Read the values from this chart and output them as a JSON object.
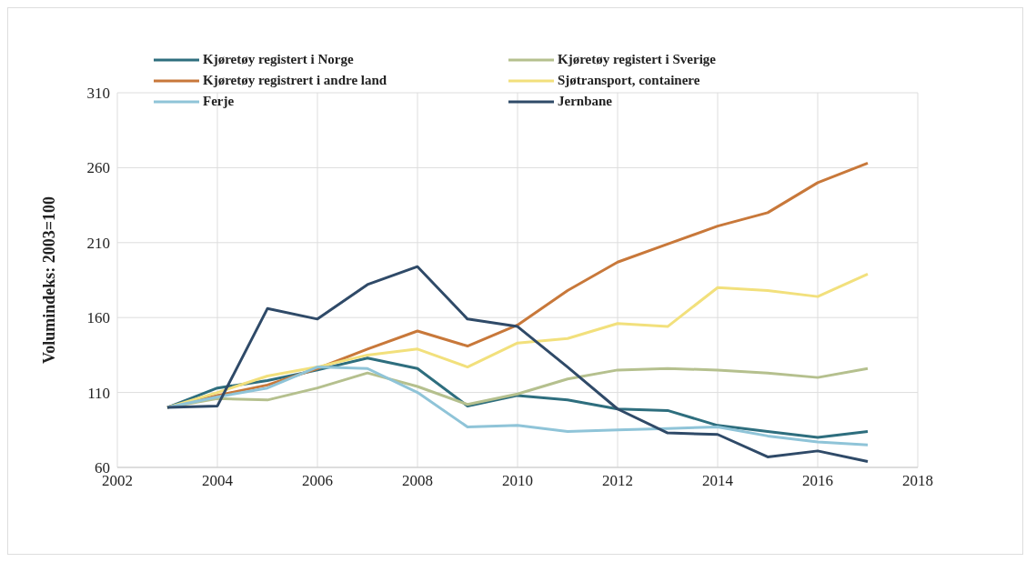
{
  "chart_data": {
    "type": "line",
    "ylabel": "Volumindeks: 2003=100",
    "x": [
      2003,
      2004,
      2005,
      2006,
      2007,
      2008,
      2009,
      2010,
      2011,
      2012,
      2013,
      2014,
      2015,
      2016,
      2017
    ],
    "xlim": [
      2002,
      2018
    ],
    "xticks": [
      2002,
      2004,
      2006,
      2008,
      2010,
      2012,
      2014,
      2016,
      2018
    ],
    "ylim": [
      60,
      310
    ],
    "yticks": [
      60,
      110,
      160,
      210,
      260,
      310
    ],
    "grid": true,
    "legend": "top",
    "marker": "none",
    "line_style": "solid",
    "series": [
      {
        "name": "Kjøretøy registert i Norge",
        "color": "#2e6e7e",
        "values": [
          100,
          113,
          118,
          125,
          133,
          126,
          101,
          108,
          105,
          99,
          98,
          88,
          84,
          80,
          84
        ]
      },
      {
        "name": "Kjøretøy registert i Sverige",
        "color": "#b5c08e",
        "values": [
          100,
          106,
          105,
          113,
          123,
          114,
          102,
          109,
          119,
          125,
          126,
          125,
          123,
          120,
          126
        ]
      },
      {
        "name": "Kjøretøy registrert i andre land",
        "color": "#c8783a",
        "values": [
          100,
          108,
          115,
          126,
          139,
          151,
          141,
          155,
          178,
          197,
          209,
          221,
          230,
          250,
          263
        ]
      },
      {
        "name": "Sjøtransport, containere",
        "color": "#f2e07c",
        "values": [
          100,
          110,
          121,
          127,
          135,
          139,
          127,
          143,
          146,
          156,
          154,
          180,
          178,
          174,
          189
        ]
      },
      {
        "name": "Ferje",
        "color": "#8fc4d8",
        "values": [
          100,
          107,
          113,
          127,
          126,
          110,
          87,
          88,
          84,
          85,
          86,
          87,
          81,
          77,
          75
        ]
      },
      {
        "name": "Jernbane",
        "color": "#2f4a68",
        "values": [
          100,
          101,
          166,
          159,
          182,
          194,
          159,
          154,
          127,
          99,
          83,
          82,
          67,
          71,
          64
        ]
      }
    ]
  }
}
